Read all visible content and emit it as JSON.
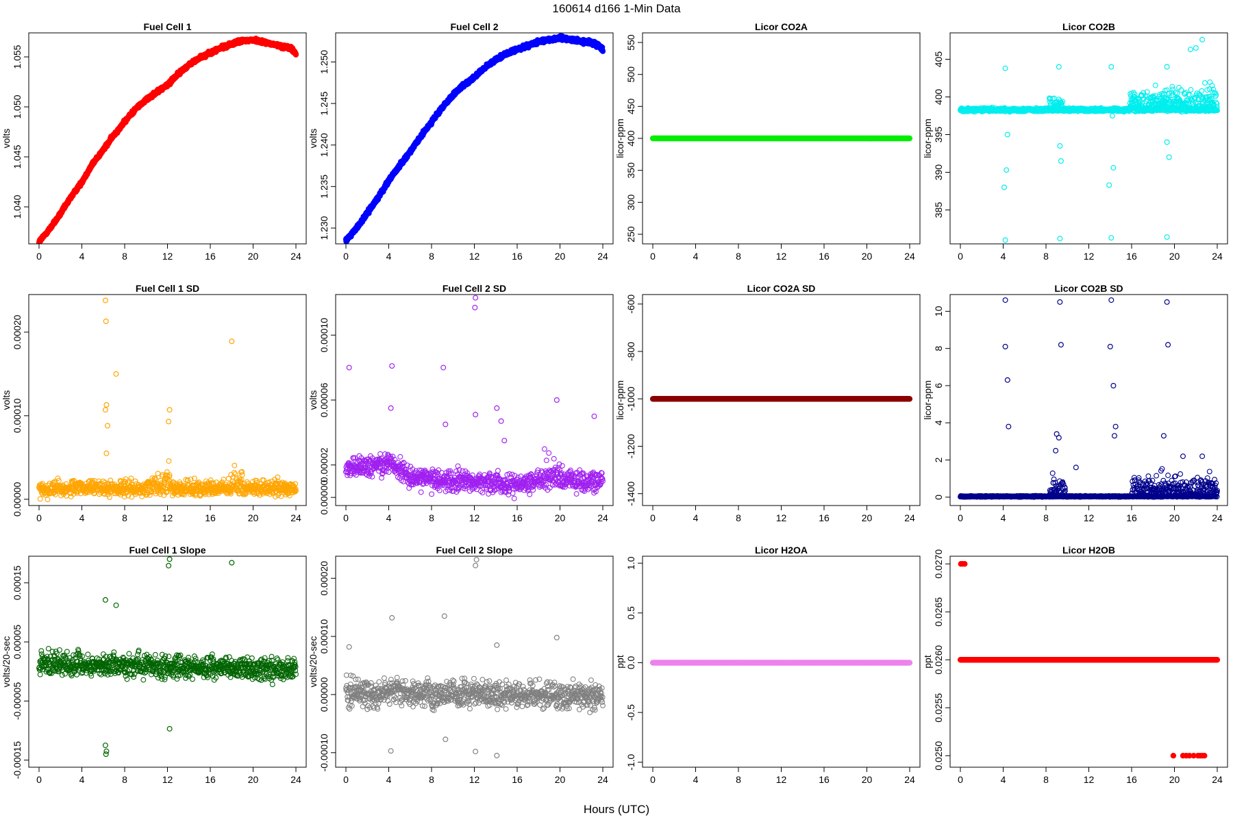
{
  "figure": {
    "title": "160614   d166   1-Min Data",
    "xlabel": "Hours (UTC)"
  },
  "chart_data": [
    {
      "id": "fc1",
      "type": "scatter",
      "title": "Fuel Cell 1",
      "ylabel": "volts",
      "xlim": [
        0,
        24
      ],
      "ylim": [
        1.0363,
        1.0574
      ],
      "yticks": [
        1.04,
        1.045,
        1.05,
        1.055
      ],
      "ytick_labels": [
        "1.040",
        "1.045",
        "1.050",
        "1.055"
      ],
      "xticks": [
        0,
        4,
        8,
        12,
        16,
        20,
        24
      ],
      "color": "#ff0000",
      "point_style": "filled",
      "series": [
        {
          "x": [
            0,
            1,
            2,
            3,
            4,
            5,
            6,
            7,
            8,
            9,
            10,
            11,
            12,
            13,
            14,
            15,
            16,
            17,
            18,
            19,
            20,
            21,
            22,
            23,
            23.6,
            24
          ],
          "y": [
            1.0365,
            1.0378,
            1.0393,
            1.041,
            1.0425,
            1.0443,
            1.0457,
            1.0472,
            1.0485,
            1.0498,
            1.0507,
            1.0515,
            1.0522,
            1.0533,
            1.0542,
            1.0549,
            1.0554,
            1.0559,
            1.0563,
            1.0566,
            1.0567,
            1.0565,
            1.0562,
            1.056,
            1.0558,
            1.0553
          ]
        }
      ],
      "noise": 0.00012,
      "n": 1440
    },
    {
      "id": "fc2",
      "type": "scatter",
      "title": "Fuel Cell 2",
      "ylabel": "volts",
      "xlim": [
        0,
        24
      ],
      "ylim": [
        1.2281,
        1.2535
      ],
      "yticks": [
        1.23,
        1.235,
        1.24,
        1.245,
        1.25
      ],
      "ytick_labels": [
        "1.230",
        "1.235",
        "1.240",
        "1.245",
        "1.250"
      ],
      "xticks": [
        0,
        4,
        8,
        12,
        16,
        20,
        24
      ],
      "color": "#0000ff",
      "point_style": "filled",
      "series": [
        {
          "x": [
            0,
            1,
            2,
            3,
            4,
            5,
            6,
            7,
            8,
            9,
            10,
            11,
            12,
            13,
            14,
            15,
            16,
            17,
            18,
            19,
            20,
            21,
            22,
            23,
            23.6,
            24
          ],
          "y": [
            1.2285,
            1.23,
            1.2318,
            1.2337,
            1.2357,
            1.2375,
            1.2392,
            1.241,
            1.2428,
            1.2445,
            1.246,
            1.2472,
            1.2482,
            1.2493,
            1.2503,
            1.251,
            1.2515,
            1.252,
            1.2524,
            1.2527,
            1.2529,
            1.2527,
            1.2525,
            1.2523,
            1.252,
            1.2515
          ]
        }
      ],
      "noise": 0.00015,
      "n": 1440
    },
    {
      "id": "co2a",
      "type": "scatter",
      "title": "Licor CO2A",
      "ylabel": "licor-ppm",
      "xlim": [
        0,
        24
      ],
      "ylim": [
        235,
        565
      ],
      "yticks": [
        250,
        300,
        350,
        400,
        450,
        500,
        550
      ],
      "ytick_labels": [
        "250",
        "300",
        "350",
        "400",
        "450",
        "500",
        "550"
      ],
      "xticks": [
        0,
        4,
        8,
        12,
        16,
        20,
        24
      ],
      "color": "#00ee00",
      "point_style": "filled",
      "series": [
        {
          "x": [
            0,
            24
          ],
          "y": [
            400,
            400
          ]
        }
      ],
      "noise": 0,
      "n": 1440
    },
    {
      "id": "co2b",
      "type": "scatter",
      "title": "Licor CO2B",
      "ylabel": "licor-ppm",
      "xlim": [
        0,
        24
      ],
      "ylim": [
        380.5,
        408.5
      ],
      "yticks": [
        385,
        390,
        395,
        400,
        405
      ],
      "ytick_labels": [
        "385",
        "390",
        "395",
        "400",
        "405"
      ],
      "xticks": [
        0,
        4,
        8,
        12,
        16,
        20,
        24
      ],
      "color": "#00eeee",
      "point_style": "open",
      "series": [
        {
          "x": [
            0,
            24
          ],
          "y": [
            398.3,
            398.3
          ]
        }
      ],
      "noise": 0.15,
      "n": 1440,
      "outliers": [
        {
          "x": 4.2,
          "y": 381
        },
        {
          "x": 9.3,
          "y": 381.2
        },
        {
          "x": 14.1,
          "y": 381.3
        },
        {
          "x": 19.3,
          "y": 381.4
        },
        {
          "x": 4.3,
          "y": 390.3
        },
        {
          "x": 14.3,
          "y": 390.6
        },
        {
          "x": 4.2,
          "y": 403.8
        },
        {
          "x": 9.2,
          "y": 404
        },
        {
          "x": 14.1,
          "y": 404
        },
        {
          "x": 19.3,
          "y": 404
        },
        {
          "x": 4.4,
          "y": 395
        },
        {
          "x": 9.4,
          "y": 391.5
        },
        {
          "x": 19.5,
          "y": 392
        },
        {
          "x": 14.2,
          "y": 397.5
        },
        {
          "x": 22.6,
          "y": 407.6
        },
        {
          "x": 21.5,
          "y": 406.3
        },
        {
          "x": 22,
          "y": 406.5
        },
        {
          "x": 4.1,
          "y": 388
        },
        {
          "x": 13.9,
          "y": 388.3
        },
        {
          "x": 9.3,
          "y": 393.5
        },
        {
          "x": 19.3,
          "y": 394
        }
      ],
      "bursts": [
        {
          "x0": 8.3,
          "x1": 9.6,
          "amp": 3
        },
        {
          "x0": 15.8,
          "x1": 24,
          "amp": 4
        }
      ]
    },
    {
      "id": "fc1sd",
      "type": "scatter",
      "title": "Fuel Cell 1 SD",
      "ylabel": "volts",
      "xlim": [
        0,
        24
      ],
      "ylim": [
        -7.5e-06,
        0.000245
      ],
      "yticks": [
        0,
        0.0001,
        0.0002
      ],
      "ytick_labels": [
        "0.00000",
        "0.00010",
        "0.00020"
      ],
      "xticks": [
        0,
        4,
        8,
        12,
        16,
        20,
        24
      ],
      "color": "#ffa500",
      "point_style": "open",
      "series": [
        {
          "x": [
            0,
            24
          ],
          "y": [
            1.3e-05,
            1.3e-05
          ]
        }
      ],
      "noise": 6.5e-06,
      "n": 900,
      "outliers": [
        {
          "x": 6.2,
          "y": 0.000238
        },
        {
          "x": 6.25,
          "y": 0.000213
        },
        {
          "x": 7.2,
          "y": 0.00015
        },
        {
          "x": 18,
          "y": 0.000189
        },
        {
          "x": 6.3,
          "y": 0.000113
        },
        {
          "x": 6.2,
          "y": 0.000107
        },
        {
          "x": 12.2,
          "y": 0.000107
        },
        {
          "x": 12.1,
          "y": 9.3e-05
        },
        {
          "x": 6.4,
          "y": 8.8e-05
        },
        {
          "x": 6.3,
          "y": 5.5e-05
        }
      ],
      "bursts": [
        {
          "x0": 10.5,
          "x1": 12.3,
          "amp": 4e-05
        },
        {
          "x0": 17.8,
          "x1": 19,
          "amp": 4e-05
        }
      ]
    },
    {
      "id": "fc2sd",
      "type": "scatter",
      "title": "Fuel Cell 2 SD",
      "ylabel": "volts",
      "xlim": [
        0,
        24
      ],
      "ylim": [
        -5e-06,
        0.000125
      ],
      "yticks": [
        0,
        2e-05,
        6e-05,
        0.0001
      ],
      "ytick_labels": [
        "0.00000",
        "0.00002",
        "0.00006",
        "0.00010"
      ],
      "xticks": [
        0,
        4,
        8,
        12,
        16,
        20,
        24
      ],
      "color": "#a020f0",
      "point_style": "open",
      "series": [
        {
          "x": [
            0,
            2,
            4,
            6,
            8,
            10,
            12,
            14,
            16,
            18,
            20,
            22,
            24
          ],
          "y": [
            1.7e-05,
            1.9e-05,
            2.2e-05,
            1.3e-05,
            1.1e-05,
            1e-05,
            1e-05,
            9e-06,
            8e-06,
            1.1e-05,
            1.2e-05,
            1e-05,
            1e-05
          ]
        }
      ],
      "noise": 4.5e-06,
      "n": 900,
      "outliers": [
        {
          "x": 12.1,
          "y": 0.000123
        },
        {
          "x": 12.05,
          "y": 0.000117
        },
        {
          "x": 0.3,
          "y": 8e-05
        },
        {
          "x": 4.3,
          "y": 8.1e-05
        },
        {
          "x": 9.1,
          "y": 8e-05
        },
        {
          "x": 19.7,
          "y": 6e-05
        },
        {
          "x": 12.1,
          "y": 5.1e-05
        },
        {
          "x": 23.2,
          "y": 5e-05
        },
        {
          "x": 4.2,
          "y": 5.5e-05
        },
        {
          "x": 9.3,
          "y": 4.5e-05
        },
        {
          "x": 14.1,
          "y": 5.5e-05
        },
        {
          "x": 14.5,
          "y": 4.7e-05
        },
        {
          "x": 14.8,
          "y": 3.5e-05
        }
      ],
      "bursts": [
        {
          "x0": 18.5,
          "x1": 20,
          "amp": 2e-05
        }
      ]
    },
    {
      "id": "co2asd",
      "type": "scatter",
      "title": "Licor CO2A SD",
      "ylabel": "licor-ppm",
      "xlim": [
        0,
        24
      ],
      "ylim": [
        -1450,
        -560
      ],
      "yticks": [
        -1400,
        -1200,
        -1000,
        -800,
        -600
      ],
      "ytick_labels": [
        "-1400",
        "-1200",
        "-1000",
        "-800",
        "-600"
      ],
      "xticks": [
        0,
        4,
        8,
        12,
        16,
        20,
        24
      ],
      "color": "#8b0000",
      "point_style": "filled",
      "series": [
        {
          "x": [
            0,
            24
          ],
          "y": [
            -1000,
            -1000
          ]
        }
      ],
      "noise": 0,
      "n": 1440
    },
    {
      "id": "co2bsd",
      "type": "scatter",
      "title": "Licor CO2B SD",
      "ylabel": "licor-ppm",
      "xlim": [
        0,
        24
      ],
      "ylim": [
        -0.45,
        10.9
      ],
      "yticks": [
        0,
        2,
        4,
        6,
        8,
        10
      ],
      "ytick_labels": [
        "0",
        "2",
        "4",
        "6",
        "8",
        "10"
      ],
      "xticks": [
        0,
        4,
        8,
        12,
        16,
        20,
        24
      ],
      "color": "#00008b",
      "point_style": "open",
      "series": [
        {
          "x": [
            0,
            24
          ],
          "y": [
            0.04,
            0.04
          ]
        }
      ],
      "noise": 0.02,
      "n": 1440,
      "outliers": [
        {
          "x": 4.2,
          "y": 10.6
        },
        {
          "x": 9.3,
          "y": 10.5
        },
        {
          "x": 14.1,
          "y": 10.6
        },
        {
          "x": 19.3,
          "y": 10.5
        },
        {
          "x": 4.2,
          "y": 8.1
        },
        {
          "x": 9.4,
          "y": 8.2
        },
        {
          "x": 14,
          "y": 8.1
        },
        {
          "x": 19.4,
          "y": 8.2
        },
        {
          "x": 4.4,
          "y": 6.3
        },
        {
          "x": 14.3,
          "y": 6
        },
        {
          "x": 4.5,
          "y": 3.8
        },
        {
          "x": 14.5,
          "y": 3.8
        },
        {
          "x": 9,
          "y": 3.4
        },
        {
          "x": 9.2,
          "y": 3.2
        },
        {
          "x": 14.4,
          "y": 3.3
        },
        {
          "x": 19,
          "y": 3.3
        },
        {
          "x": 10.8,
          "y": 1.6
        },
        {
          "x": 8.9,
          "y": 2.5
        },
        {
          "x": 20.8,
          "y": 2.2
        },
        {
          "x": 22.6,
          "y": 2.2
        }
      ],
      "bursts": [
        {
          "x0": 8.3,
          "x1": 9.8,
          "amp": 1.4
        },
        {
          "x0": 16,
          "x1": 24,
          "amp": 1.6
        }
      ]
    },
    {
      "id": "fc1slope",
      "type": "scatter",
      "title": "Fuel Cell 1 Slope",
      "ylabel": "volts/20-sec",
      "xlim": [
        0,
        24
      ],
      "ylim": [
        -0.000162,
        0.000195
      ],
      "yticks": [
        -0.00015,
        -5e-05,
        5e-05,
        0.00015
      ],
      "ytick_labels": [
        "-0.00015",
        "-0.00005",
        "0.00005",
        "0.00015"
      ],
      "xticks": [
        0,
        4,
        8,
        12,
        16,
        20,
        24
      ],
      "color": "#006400",
      "point_style": "open",
      "series": [
        {
          "x": [
            0,
            12,
            24
          ],
          "y": [
            1.3e-05,
            8e-06,
            4e-06
          ]
        }
      ],
      "noise": 1.3e-05,
      "n": 900,
      "outliers": [
        {
          "x": 12.2,
          "y": 0.00019
        },
        {
          "x": 12.1,
          "y": 0.000179
        },
        {
          "x": 18,
          "y": 0.000184
        },
        {
          "x": 6.2,
          "y": 0.000121
        },
        {
          "x": 7.2,
          "y": 0.000112
        },
        {
          "x": 12.2,
          "y": -9.7e-05
        },
        {
          "x": 6.2,
          "y": -0.000125
        },
        {
          "x": 6.3,
          "y": -0.000135
        },
        {
          "x": 6.25,
          "y": -0.00014
        }
      ]
    },
    {
      "id": "fc2slope",
      "type": "scatter",
      "title": "Fuel Cell 2 Slope",
      "ylabel": "volts/20-sec",
      "xlim": [
        0,
        24
      ],
      "ylim": [
        -0.000125,
        0.000238
      ],
      "yticks": [
        -0.0001,
        0,
        0.0001,
        0.0002
      ],
      "ytick_labels": [
        "-0.00010",
        "0.00000",
        "0.00010",
        "0.00020"
      ],
      "xticks": [
        0,
        4,
        8,
        12,
        16,
        20,
        24
      ],
      "color": "#808080",
      "point_style": "open",
      "series": [
        {
          "x": [
            0,
            12,
            24
          ],
          "y": [
            3e-06,
            1e-06,
            -3e-06
          ]
        }
      ],
      "noise": 1.6e-05,
      "n": 900,
      "outliers": [
        {
          "x": 12.2,
          "y": 0.000232
        },
        {
          "x": 12.1,
          "y": 0.000222
        },
        {
          "x": 9.2,
          "y": 0.000135
        },
        {
          "x": 4.3,
          "y": 0.000132
        },
        {
          "x": 19.7,
          "y": 9.8e-05
        },
        {
          "x": 14.1,
          "y": 8.5e-05
        },
        {
          "x": 4.2,
          "y": -9.7e-05
        },
        {
          "x": 12.1,
          "y": -9.8e-05
        },
        {
          "x": 14.1,
          "y": -0.000105
        },
        {
          "x": 9.3,
          "y": -7.7e-05
        },
        {
          "x": 0.3,
          "y": 8.2e-05
        }
      ]
    },
    {
      "id": "h2oa",
      "type": "scatter",
      "title": "Licor H2OA",
      "ylabel": "ppt",
      "xlim": [
        0,
        24
      ],
      "ylim": [
        -1.05,
        1.07
      ],
      "yticks": [
        -1,
        -0.5,
        0,
        0.5,
        1
      ],
      "ytick_labels": [
        "-1.0",
        "-0.5",
        "0.0",
        "0.5",
        "1.0"
      ],
      "xticks": [
        0,
        4,
        8,
        12,
        16,
        20,
        24
      ],
      "color": "#ee82ee",
      "point_style": "filled",
      "series": [
        {
          "x": [
            0,
            24
          ],
          "y": [
            0,
            0
          ]
        }
      ],
      "noise": 0,
      "n": 1440
    },
    {
      "id": "h2ob",
      "type": "scatter",
      "title": "Licor H2OB",
      "ylabel": "ppt",
      "xlim": [
        0,
        24
      ],
      "ylim": [
        0.02488,
        0.02708
      ],
      "yticks": [
        0.025,
        0.0255,
        0.026,
        0.0265,
        0.027
      ],
      "ytick_labels": [
        "0.0250",
        "0.0255",
        "0.0260",
        "0.0265",
        "0.0270"
      ],
      "xticks": [
        0,
        4,
        8,
        12,
        16,
        20,
        24
      ],
      "color": "#ff0000",
      "point_style": "filled",
      "series": [
        {
          "x": [
            0,
            24
          ],
          "y": [
            0.026,
            0.026
          ]
        }
      ],
      "noise": 0,
      "n": 1440,
      "outliers": [
        {
          "x": 0.05,
          "y": 0.027
        },
        {
          "x": 0.2,
          "y": 0.027
        },
        {
          "x": 0.4,
          "y": 0.027
        },
        {
          "x": 19.9,
          "y": 0.025
        },
        {
          "x": 20.8,
          "y": 0.025
        },
        {
          "x": 21.1,
          "y": 0.025
        },
        {
          "x": 21.4,
          "y": 0.025
        },
        {
          "x": 21.8,
          "y": 0.025
        },
        {
          "x": 22.2,
          "y": 0.025
        },
        {
          "x": 22.4,
          "y": 0.025
        },
        {
          "x": 22.6,
          "y": 0.025
        },
        {
          "x": 22.8,
          "y": 0.025
        }
      ]
    }
  ]
}
